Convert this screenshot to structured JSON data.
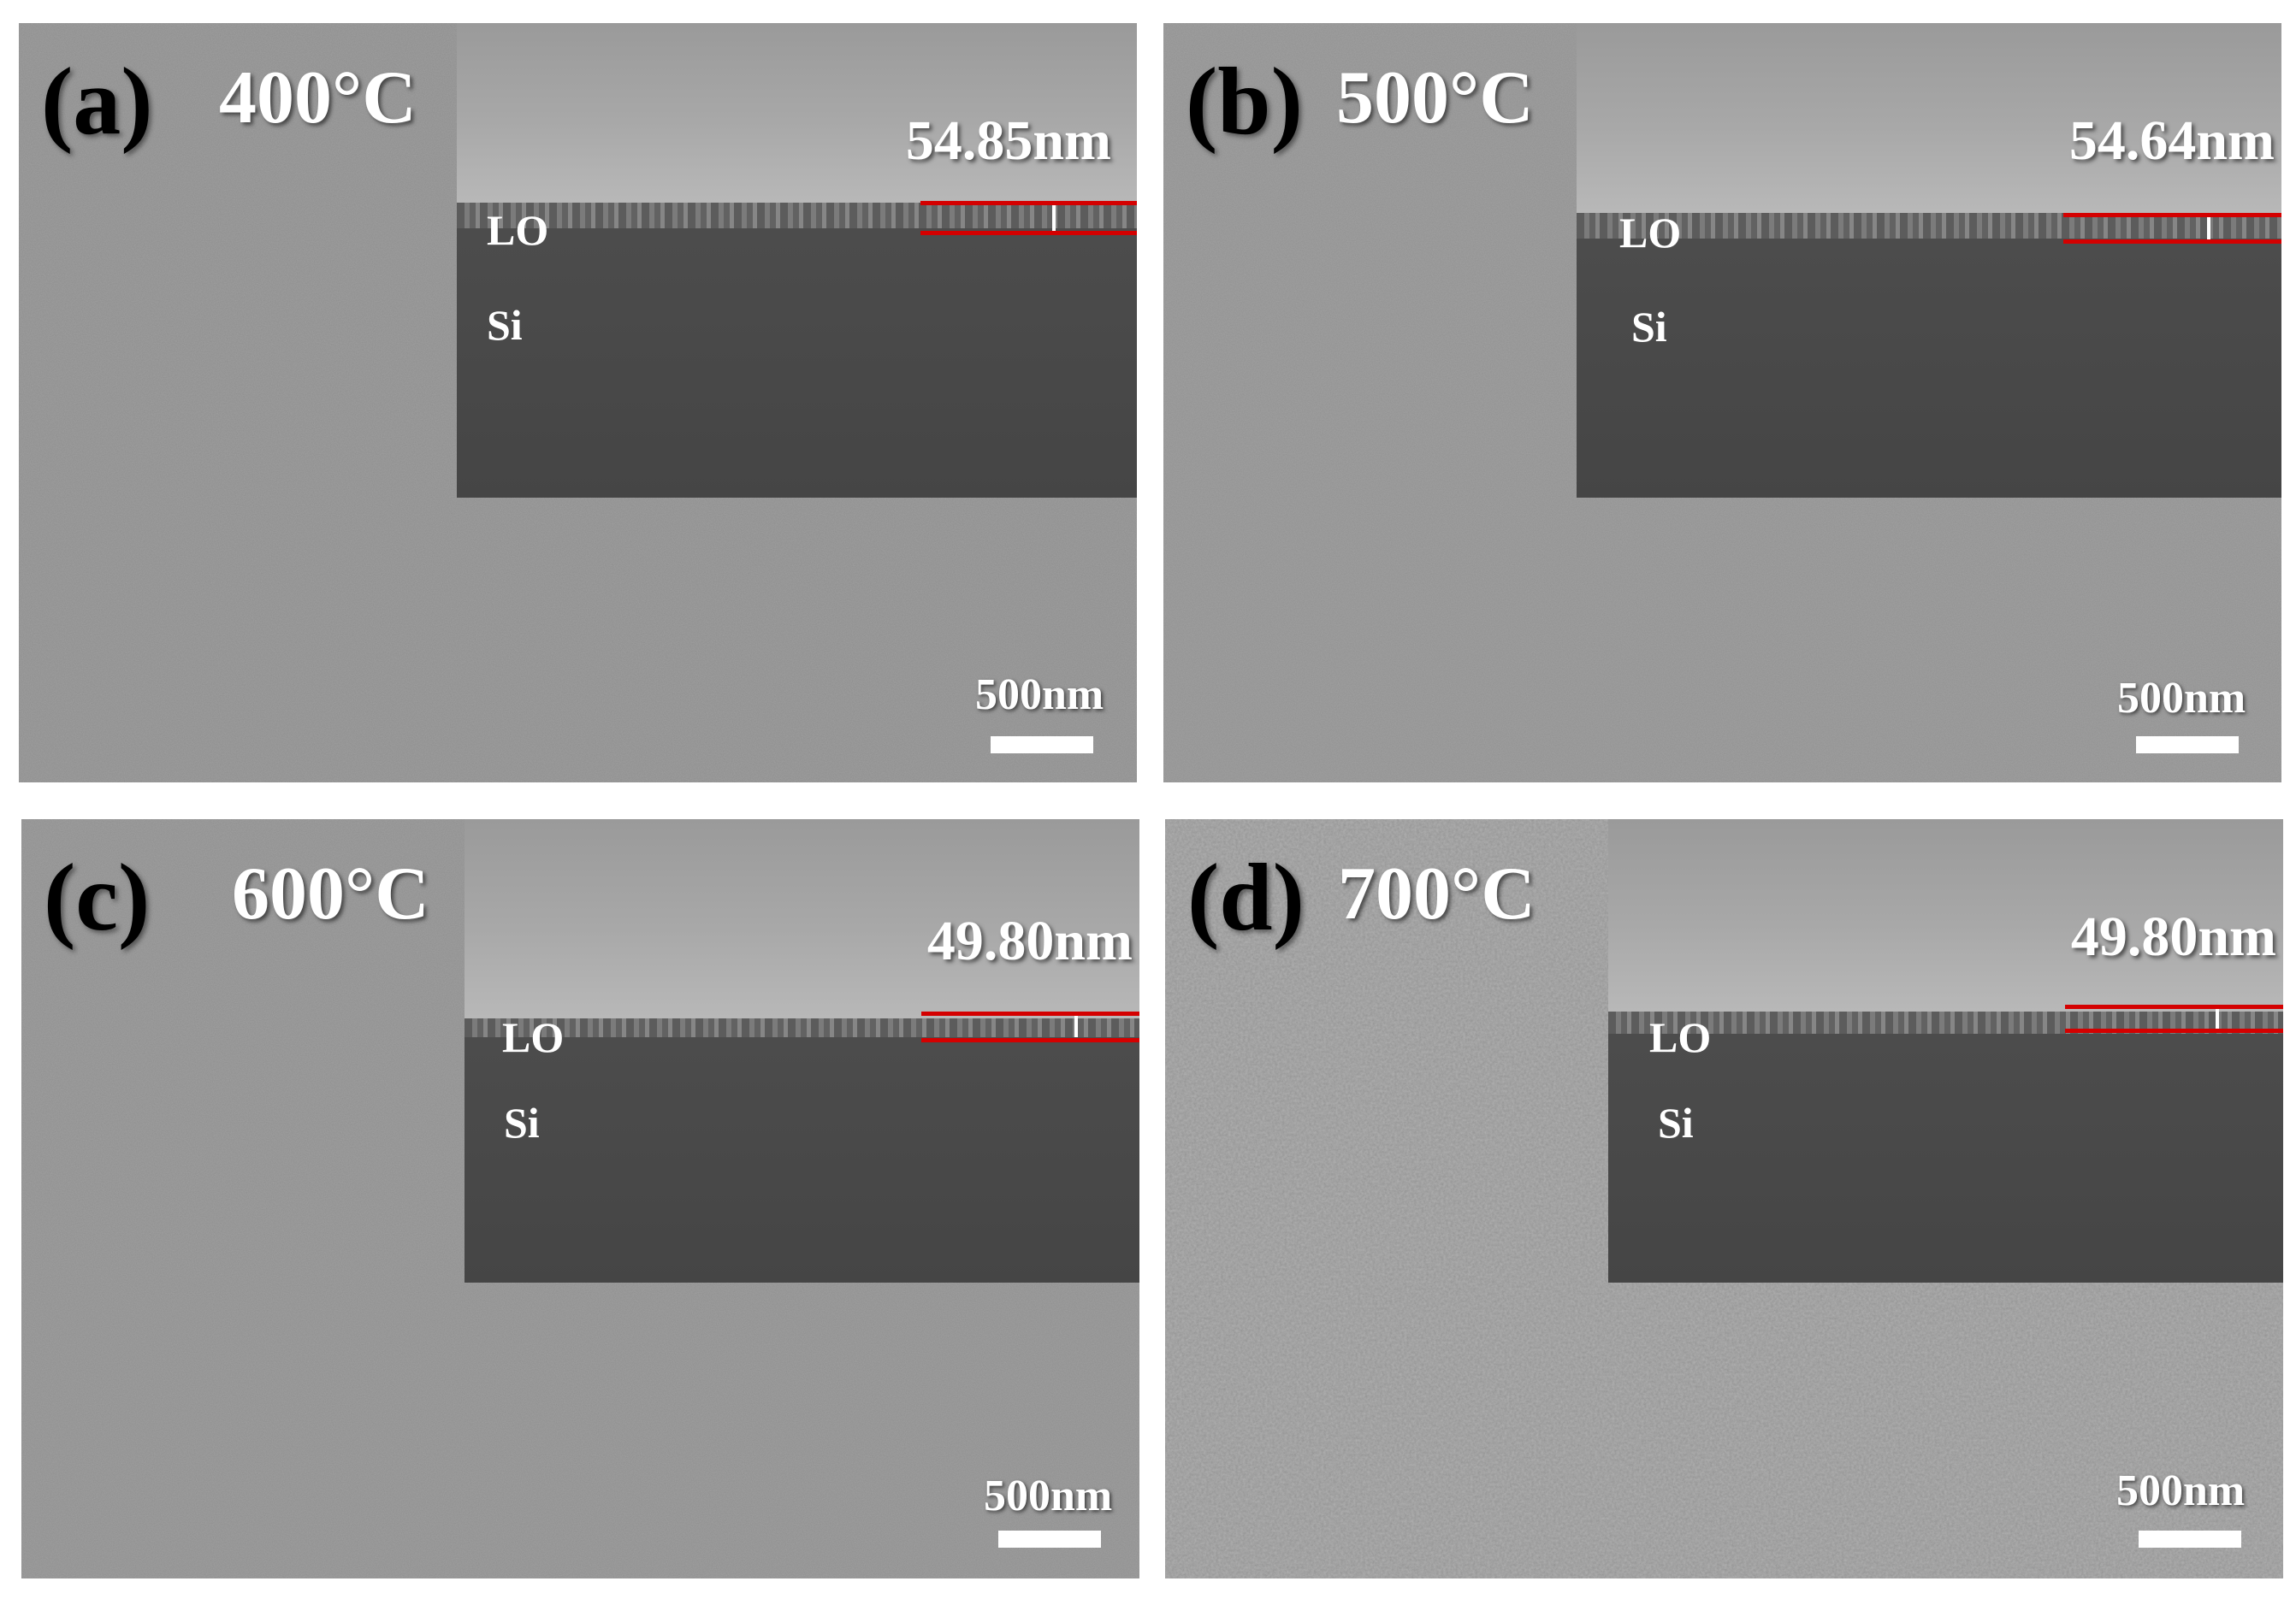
{
  "panels": [
    {
      "label": "(a)",
      "temperature": "400°C",
      "thickness": "54.85nm",
      "film_label": "LO",
      "substrate_label": "Si",
      "scale_bar": "500nm"
    },
    {
      "label": "(b)",
      "temperature": "500°C",
      "thickness": "54.64nm",
      "film_label": "LO",
      "substrate_label": "Si",
      "scale_bar": "500nm"
    },
    {
      "label": "(c)",
      "temperature": "600°C",
      "thickness": "49.80nm",
      "film_label": "LO",
      "substrate_label": "Si",
      "scale_bar": "500nm"
    },
    {
      "label": "(d)",
      "temperature": "700°C",
      "thickness": "49.80nm",
      "film_label": "LO",
      "substrate_label": "Si",
      "scale_bar": "500nm"
    }
  ],
  "colors": {
    "measurement_line": "#d40000",
    "surface_gray": "#8d8d8d",
    "substrate_gray": "#4a4a4a"
  }
}
